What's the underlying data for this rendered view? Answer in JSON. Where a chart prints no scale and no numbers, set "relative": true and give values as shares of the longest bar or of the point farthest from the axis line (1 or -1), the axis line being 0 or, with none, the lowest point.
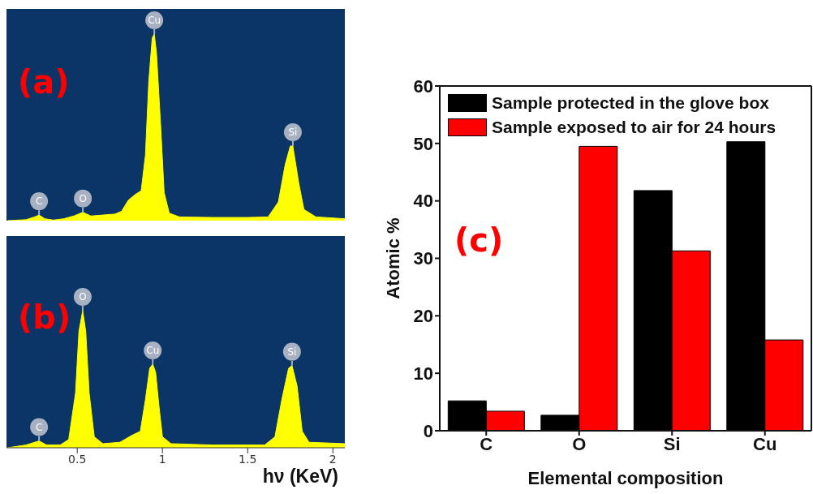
{
  "chart_data": [
    {
      "type": "area",
      "relative": true,
      "tick_labels": false,
      "xlim": [
        0.085,
        2.07
      ],
      "x": [
        0.09,
        0.2,
        0.25,
        0.276,
        0.31,
        0.36,
        0.42,
        0.48,
        0.533,
        0.58,
        0.65,
        0.72,
        0.76,
        0.8,
        0.84,
        0.875,
        0.9,
        0.92,
        0.94,
        0.952,
        0.965,
        0.99,
        1.01,
        1.04,
        1.1,
        1.3,
        1.5,
        1.62,
        1.68,
        1.72,
        1.75,
        1.765,
        1.8,
        1.83,
        1.9,
        2.07
      ],
      "series": [
        {
          "color": "#ffff00",
          "values": [
            0.0,
            0.005,
            0.02,
            0.03,
            0.01,
            0.003,
            0.01,
            0.025,
            0.045,
            0.025,
            0.03,
            0.035,
            0.05,
            0.11,
            0.14,
            0.16,
            0.35,
            0.75,
            0.98,
            1.0,
            0.9,
            0.5,
            0.15,
            0.04,
            0.02,
            0.017,
            0.017,
            0.02,
            0.1,
            0.3,
            0.4,
            0.4,
            0.2,
            0.06,
            0.02,
            0.01
          ]
        }
      ],
      "annotations": [
        "(a)",
        {
          "text": "C",
          "x": 0.276,
          "y": 0.03
        },
        {
          "text": "O",
          "x": 0.533,
          "y": 0.045
        },
        {
          "text": "Cu",
          "x": 0.952,
          "y": 1.0
        },
        {
          "text": "Si",
          "x": 1.765,
          "y": 0.4
        }
      ]
    },
    {
      "type": "area",
      "relative": true,
      "tick_labels": "x",
      "xlim": [
        0.085,
        2.07
      ],
      "xticks": [
        0.5,
        1,
        1.5,
        2
      ],
      "xlabel": "hν (KeV)",
      "x": [
        0.09,
        0.2,
        0.276,
        0.32,
        0.4,
        0.45,
        0.49,
        0.51,
        0.532,
        0.55,
        0.57,
        0.6,
        0.65,
        0.75,
        0.82,
        0.87,
        0.9,
        0.925,
        0.943,
        0.96,
        0.98,
        1.0,
        1.05,
        1.3,
        1.6,
        1.66,
        1.7,
        1.74,
        1.76,
        1.79,
        1.82,
        1.86,
        2.07
      ],
      "series": [
        {
          "color": "#ffff00",
          "values": [
            0.0,
            0.02,
            0.05,
            0.02,
            0.02,
            0.06,
            0.4,
            0.85,
            1.0,
            0.85,
            0.4,
            0.08,
            0.03,
            0.04,
            0.09,
            0.12,
            0.35,
            0.58,
            0.61,
            0.55,
            0.3,
            0.08,
            0.03,
            0.02,
            0.02,
            0.08,
            0.35,
            0.58,
            0.6,
            0.45,
            0.12,
            0.04,
            0.03
          ]
        }
      ],
      "annotations": [
        "(b)",
        {
          "text": "C",
          "x": 0.276,
          "y": 0.05
        },
        {
          "text": "O",
          "x": 0.532,
          "y": 1.0
        },
        {
          "text": "Cu",
          "x": 0.943,
          "y": 0.61
        },
        {
          "text": "Si",
          "x": 1.76,
          "y": 0.6
        }
      ]
    },
    {
      "type": "bar",
      "categories": [
        "C",
        "O",
        "Si",
        "Cu"
      ],
      "xlabel": "Elemental composition",
      "ylabel": "Atomic %",
      "ylim": [
        0,
        60
      ],
      "yticks": [
        0,
        10,
        20,
        30,
        40,
        50,
        60
      ],
      "legend": "top left",
      "series": [
        {
          "name": "Sample protected in the glove box",
          "color": "#000000",
          "values": [
            5.2,
            2.7,
            41.8,
            50.3
          ]
        },
        {
          "name": "Sample exposed to air for 24 hours",
          "color": "#ff0000",
          "values": [
            3.4,
            49.5,
            31.3,
            15.8
          ]
        }
      ],
      "annotations": [
        "(c)"
      ]
    }
  ]
}
